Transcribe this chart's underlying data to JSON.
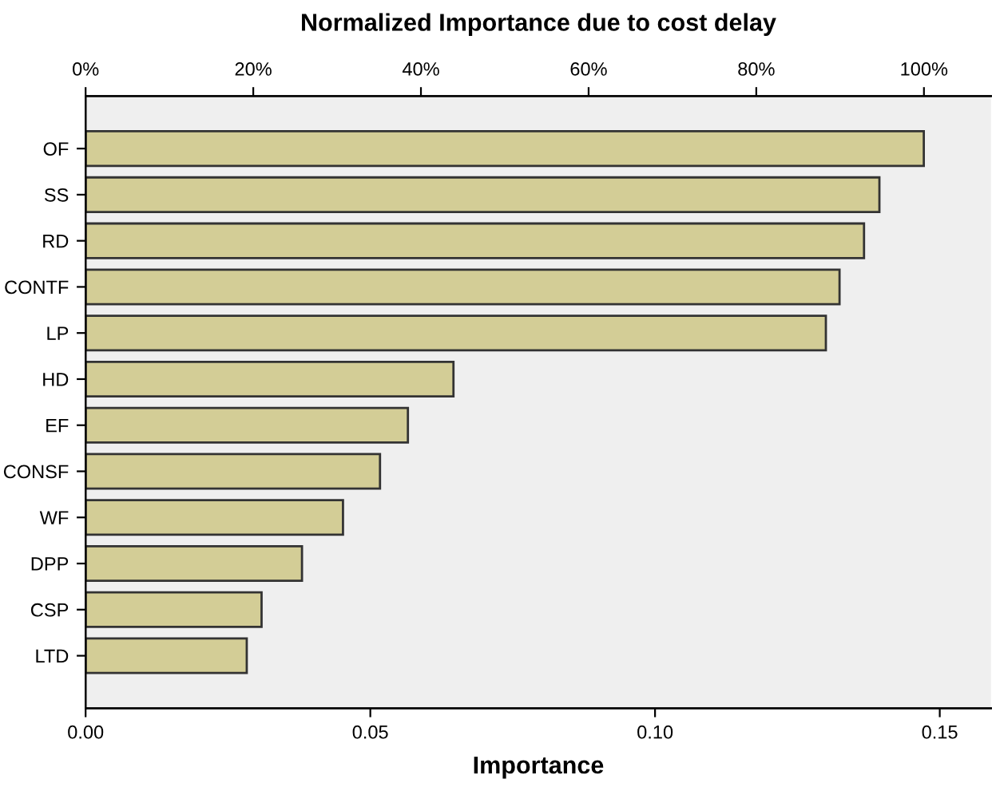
{
  "chart_data": {
    "type": "bar",
    "orientation": "horizontal",
    "title": "Normalized Importance due to cost delay",
    "xlabel": "Importance",
    "categories": [
      "OF",
      "SS",
      "RD",
      "CONTF",
      "LP",
      "HD",
      "EF",
      "CONSF",
      "WF",
      "DPP",
      "CSP",
      "LTD"
    ],
    "values": [
      0.1472,
      0.1394,
      0.1367,
      0.1324,
      0.13,
      0.0646,
      0.0566,
      0.0517,
      0.0452,
      0.038,
      0.0309,
      0.0283
    ],
    "color": "#d3cd96",
    "xlim": [
      0,
      0.159
    ],
    "xticks": [
      {
        "value": 0,
        "label": "0.00"
      },
      {
        "value": 0.05,
        "label": "0.05"
      },
      {
        "value": 0.1,
        "label": "0.10"
      },
      {
        "value": 0.15,
        "label": "0.15"
      }
    ],
    "x2lim": [
      0,
      108
    ],
    "x2ticks": [
      {
        "value": 0,
        "label": "0%"
      },
      {
        "value": 20,
        "label": "20%"
      },
      {
        "value": 40,
        "label": "40%"
      },
      {
        "value": 60,
        "label": "60%"
      },
      {
        "value": 80,
        "label": "80%"
      },
      {
        "value": 100,
        "label": "100%"
      }
    ],
    "grid": false
  }
}
